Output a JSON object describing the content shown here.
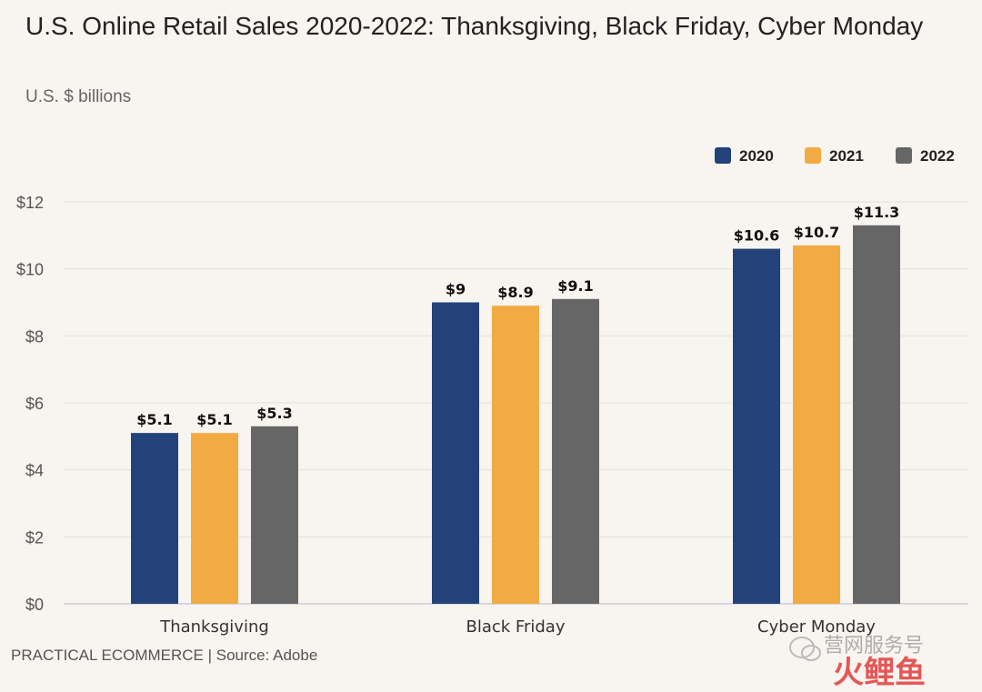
{
  "title": "U.S. Online Retail Sales 2020-2022: Thanksgiving, Black Friday, Cyber Monday",
  "subtitle": "U.S. $ billions",
  "footer": "PRACTICAL ECOMMERCE | Source: Adobe",
  "watermark": {
    "line1": "营网服务号",
    "line2": "火鲤鱼"
  },
  "chart_data": {
    "type": "bar",
    "categories": [
      "Thanksgiving",
      "Black Friday",
      "Cyber Monday"
    ],
    "series": [
      {
        "name": "2020",
        "color": "#23427a",
        "values": [
          5.1,
          9,
          10.6
        ],
        "labels": [
          "$5.1",
          "$9",
          "$10.6"
        ]
      },
      {
        "name": "2021",
        "color": "#f2ab42",
        "values": [
          5.1,
          8.9,
          10.7
        ],
        "labels": [
          "$5.1",
          "$8.9",
          "$10.7"
        ]
      },
      {
        "name": "2022",
        "color": "#666666",
        "values": [
          5.3,
          9.1,
          11.3
        ],
        "labels": [
          "$5.3",
          "$9.1",
          "$11.3"
        ]
      }
    ],
    "ylim": [
      0,
      12
    ],
    "yticks": [
      0,
      2,
      4,
      6,
      8,
      10,
      12
    ],
    "ytick_labels": [
      "$0",
      "$2",
      "$4",
      "$6",
      "$8",
      "$10",
      "$12"
    ],
    "grid": true,
    "legend": "top-right"
  }
}
